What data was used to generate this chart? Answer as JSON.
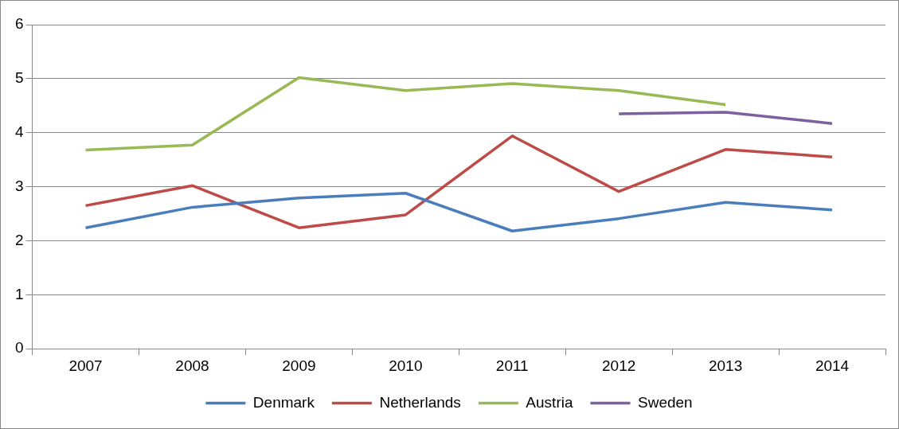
{
  "chart_data": {
    "type": "line",
    "categories": [
      "2007",
      "2008",
      "2009",
      "2010",
      "2011",
      "2012",
      "2013",
      "2014"
    ],
    "series": [
      {
        "name": "Denmark",
        "color": "#4a7ebb",
        "values": [
          2.24,
          2.62,
          2.79,
          2.88,
          2.18,
          2.41,
          2.71,
          2.57
        ]
      },
      {
        "name": "Netherlands",
        "color": "#be4b48",
        "values": [
          2.65,
          3.02,
          2.24,
          2.48,
          3.94,
          2.91,
          3.69,
          3.55
        ]
      },
      {
        "name": "Austria",
        "color": "#98b954",
        "values": [
          3.68,
          3.77,
          5.02,
          4.78,
          4.91,
          4.78,
          4.52,
          null
        ]
      },
      {
        "name": "Sweden",
        "color": "#7d60a0",
        "values": [
          null,
          null,
          null,
          null,
          null,
          4.35,
          4.38,
          4.17
        ]
      }
    ],
    "ylim": [
      0,
      6
    ],
    "yticks": [
      0,
      1,
      2,
      3,
      4,
      5,
      6
    ],
    "grid": "y",
    "legend": "bottom",
    "marker": "none",
    "line_style": "solid"
  }
}
